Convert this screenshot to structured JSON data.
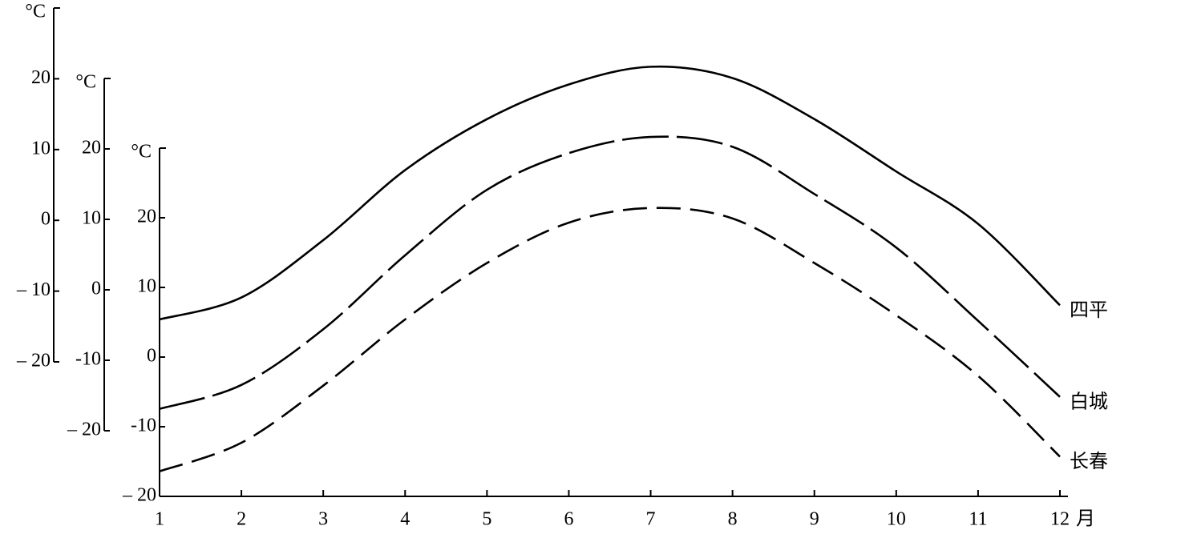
{
  "chart_data": {
    "type": "line",
    "x": [
      1,
      2,
      3,
      4,
      5,
      6,
      7,
      8,
      9,
      10,
      11,
      12
    ],
    "xlim": [
      1,
      12
    ],
    "xticks": [
      1,
      2,
      3,
      4,
      5,
      6,
      7,
      8,
      9,
      10,
      11,
      12
    ],
    "xlabel": "月",
    "ylabel": "°C",
    "ylim": [
      -20,
      30
    ],
    "yticks": [
      {
        "value": -20,
        "label": "– 20"
      },
      {
        "value": -10,
        "label": "– 10"
      },
      0,
      10,
      20
    ],
    "y2label": "°C",
    "y2lim": [
      -20,
      30
    ],
    "y2ticks": [
      {
        "value": -20,
        "label": "– 20"
      },
      -10,
      0,
      10,
      20
    ],
    "y3label": "°C",
    "y3lim": [
      -20,
      30
    ],
    "y3ticks": [
      {
        "value": -20,
        "label": "– 20"
      },
      -10,
      0,
      10,
      20
    ],
    "series": [
      {
        "name": "四平",
        "color": "#000000",
        "dash": "solid",
        "axis": "y",
        "values": [
          -14.0,
          -10.9,
          -2.8,
          7.1,
          14.3,
          19.2,
          21.7,
          20.1,
          14.3,
          6.9,
          -0.5,
          -12.0
        ]
      },
      {
        "name": "白城",
        "color": "#000000",
        "dash": "long",
        "axis": "y2",
        "values": [
          -16.9,
          -13.5,
          -5.6,
          4.9,
          14.2,
          19.4,
          21.7,
          20.3,
          13.6,
          6.0,
          -4.4,
          -15.2
        ]
      },
      {
        "name": "长春",
        "color": "#000000",
        "dash": "short",
        "axis": "y3",
        "values": [
          -16.4,
          -12.3,
          -4.1,
          5.4,
          13.5,
          19.3,
          21.4,
          19.9,
          13.5,
          6.0,
          -2.7,
          -14.3
        ]
      }
    ]
  }
}
